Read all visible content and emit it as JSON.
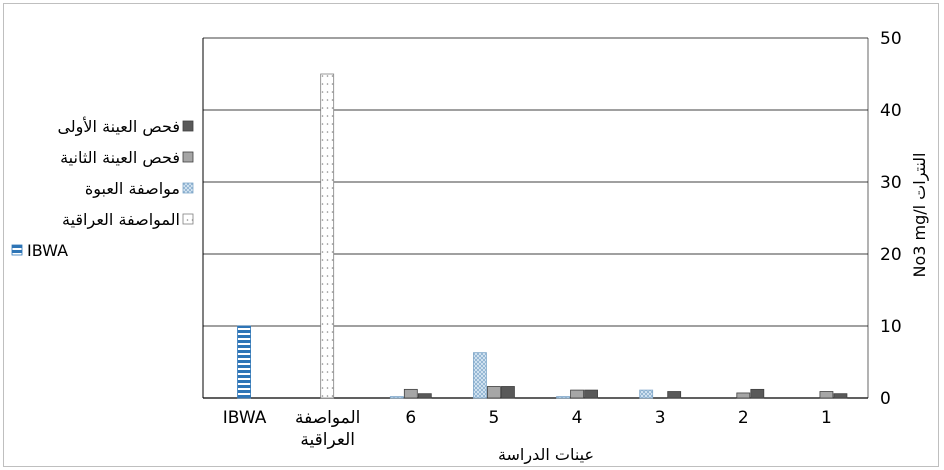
{
  "chart_data": {
    "type": "bar",
    "title": "",
    "xlabel": "عينات الدراسة",
    "ylabel": "No3 mg/l النترات",
    "ylim": [
      0,
      50
    ],
    "yticks": [
      0,
      10,
      20,
      30,
      40,
      50
    ],
    "y_axis_side": "right",
    "x_direction": "right-to-left",
    "grid": true,
    "legend_position": "left",
    "categories": [
      "1",
      "2",
      "3",
      "4",
      "5",
      "6",
      "المواصفة العراقية",
      "IBWA"
    ],
    "series": [
      {
        "name": "فحص العينة الأولى",
        "color": "#595959",
        "pattern": "solid",
        "values": [
          0.6,
          1.2,
          0.9,
          1.1,
          1.6,
          0.6,
          null,
          null
        ]
      },
      {
        "name": "فحص العينة الثانية",
        "color": "#a6a6a6",
        "pattern": "solid",
        "values": [
          0.9,
          0.7,
          0,
          1.1,
          1.6,
          1.2,
          null,
          null
        ]
      },
      {
        "name": "مواصفة العبوة",
        "color": "#cfe3f3",
        "pattern": "crosshatch",
        "values": [
          0,
          0,
          1.1,
          0.2,
          6.3,
          0.2,
          null,
          null
        ]
      },
      {
        "name": "المواصفة العراقية",
        "color": "#f2f2f2",
        "pattern": "dotted",
        "values": [
          null,
          null,
          null,
          null,
          null,
          null,
          45,
          null
        ]
      },
      {
        "name": "IBWA",
        "color": "#2e75b6",
        "pattern": "horizontal-stripes",
        "values": [
          null,
          null,
          null,
          null,
          null,
          null,
          null,
          10
        ]
      }
    ]
  }
}
